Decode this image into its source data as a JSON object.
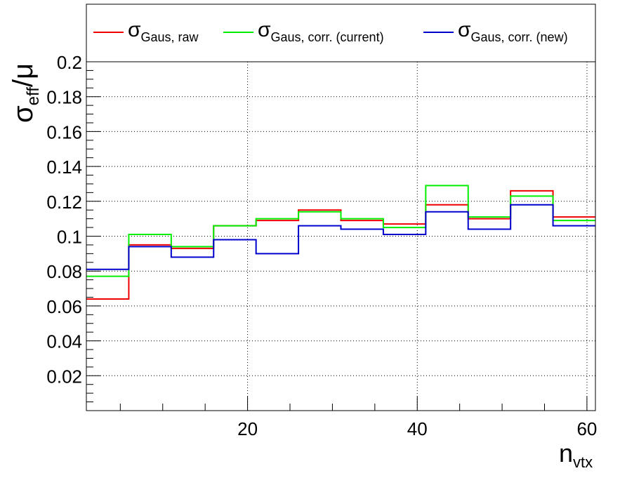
{
  "chart_data": {
    "type": "line",
    "step": true,
    "x_edges": [
      1,
      6,
      11,
      16,
      21,
      26,
      31,
      36,
      41,
      46,
      51,
      56,
      61
    ],
    "xlim": [
      1,
      61
    ],
    "ylim": [
      0,
      0.2
    ],
    "x_ticks": [
      20,
      40,
      60
    ],
    "y_ticks": [
      0.02,
      0.04,
      0.06,
      0.08,
      0.1,
      0.12,
      0.14,
      0.16,
      0.18,
      0.2
    ],
    "x_tick_labels": [
      "20",
      "40",
      "60"
    ],
    "y_tick_labels": [
      "0.02",
      "0.04",
      "0.06",
      "0.08",
      "0.1",
      "0.12",
      "0.14",
      "0.16",
      "0.18",
      "0.2"
    ],
    "grid": true,
    "legend_position": "top",
    "xlabel": {
      "main": "n",
      "sub": "vtx"
    },
    "ylabel": {
      "main": "σ",
      "sub": "eff",
      "tail": "/μ"
    },
    "series": [
      {
        "name_main": "σ",
        "name_sub": "Gaus, raw",
        "color": "#ee0000",
        "values": [
          0.064,
          0.095,
          0.093,
          0.106,
          0.109,
          0.115,
          0.109,
          0.107,
          0.118,
          0.11,
          0.126,
          0.111
        ]
      },
      {
        "name_main": "σ",
        "name_sub": "Gaus, corr. (current)",
        "color": "#00ee00",
        "values": [
          0.077,
          0.101,
          0.094,
          0.106,
          0.11,
          0.114,
          0.11,
          0.105,
          0.129,
          0.111,
          0.123,
          0.109
        ]
      },
      {
        "name_main": "σ",
        "name_sub": "Gaus, corr. (new)",
        "color": "#0000cc",
        "values": [
          0.081,
          0.094,
          0.088,
          0.098,
          0.09,
          0.106,
          0.104,
          0.101,
          0.114,
          0.104,
          0.118,
          0.106
        ]
      }
    ]
  }
}
